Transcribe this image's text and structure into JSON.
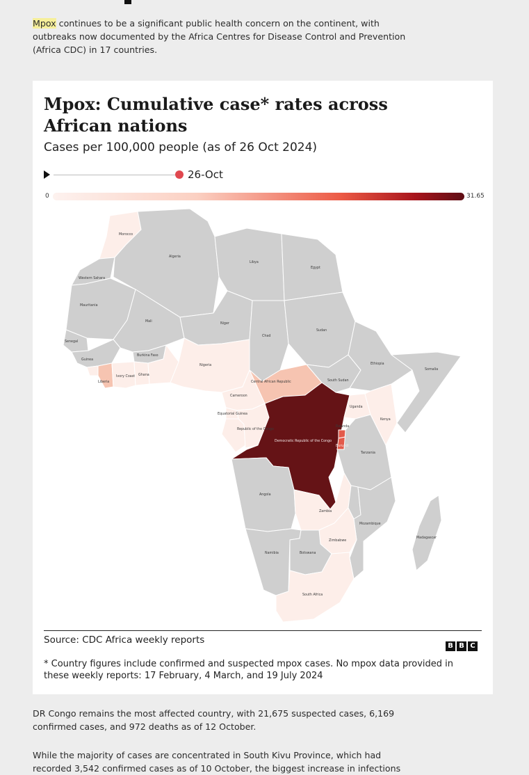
{
  "intro": {
    "highlight": "Mpox",
    "text": " continues to be a significant public health concern on the continent, with outbreaks now documented by the Africa Centres for Disease Control and Prevention (Africa CDC) in 17 countries."
  },
  "chart": {
    "title": "Mpox: Cumulative case* rates across African nations",
    "subtitle": "Cases per 100,000 people (as of 26 Oct 2024)",
    "timeline_date": "26-Oct",
    "legend_min": "0",
    "legend_max": "31.65",
    "source": "Source: CDC Africa weekly reports",
    "brand": [
      "B",
      "B",
      "C"
    ],
    "footnote": "* Country figures include confirmed and suspected mpox cases. No mpox data provided in these weekly reports: 17 February, 4 March, and 19 July 2024",
    "labels": {
      "morocco": "Morocco",
      "algeria": "Algeria",
      "libya": "Libya",
      "egypt": "Egypt",
      "western_sahara": "Western Sahara",
      "mauritania": "Mauritania",
      "mali": "Mali",
      "niger": "Niger",
      "chad": "Chad",
      "sudan": "Sudan",
      "senegal": "Senegal",
      "guinea": "Guinea",
      "burkina": "Burkina Faso",
      "ghana": "Ghana",
      "ivory": "Ivory Coast",
      "liberia": "Liberia",
      "nigeria": "Nigeria",
      "car": "Central African Republic",
      "south_sudan": "South Sudan",
      "ethiopia": "Ethiopia",
      "somalia": "Somalia",
      "cameroon": "Cameroon",
      "eq_guinea": "Equatorial Guinea",
      "congo": "Republic of the Congo",
      "drc": "Democratic Republic of the Congo",
      "uganda": "Uganda",
      "kenya": "Kenya",
      "rwanda": "Rwanda",
      "burundi": "Burundi",
      "tanzania": "Tanzania",
      "angola": "Angola",
      "zambia": "Zambia",
      "mozambique": "Mozambique",
      "zimbabwe": "Zimbabwe",
      "namibia": "Namibia",
      "botswana": "Botswana",
      "madagascar": "Madagascar",
      "south_africa": "South Africa"
    }
  },
  "body2": "DR Congo remains the most affected country, with 21,675 suspected cases, 6,169 confirmed cases, and 972 deaths as of 12 October.",
  "body3": "While the majority of cases are concentrated in South Kivu Province, which had recorded 3,542 confirmed cases as of 10 October, the biggest increase in infections",
  "colors": {
    "no_data": "#cfcfcf",
    "low": "#fdeee9",
    "mid": "#f6c4b1",
    "high": "#e35a4a",
    "max": "#651316"
  }
}
